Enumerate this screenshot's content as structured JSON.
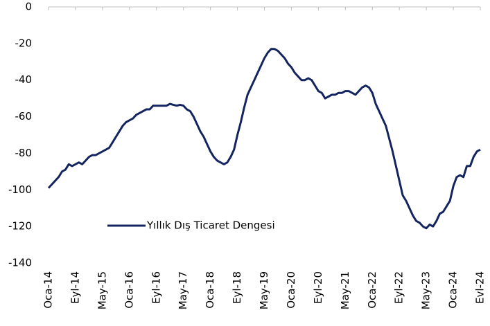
{
  "chart_data": {
    "type": "line",
    "categories": [
      "Oca-14",
      null,
      null,
      null,
      null,
      null,
      null,
      null,
      "Eyl-14",
      null,
      null,
      null,
      null,
      null,
      null,
      null,
      "May-15",
      null,
      null,
      null,
      null,
      null,
      null,
      null,
      "Oca-16",
      null,
      null,
      null,
      null,
      null,
      null,
      null,
      "Eyl-16",
      null,
      null,
      null,
      null,
      null,
      null,
      null,
      "May-17",
      null,
      null,
      null,
      null,
      null,
      null,
      null,
      "Oca-18",
      null,
      null,
      null,
      null,
      null,
      null,
      null,
      "Eyl-18",
      null,
      null,
      null,
      null,
      null,
      null,
      null,
      "May-19",
      null,
      null,
      null,
      null,
      null,
      null,
      null,
      "Oca-20",
      null,
      null,
      null,
      null,
      null,
      null,
      null,
      "Eyl-20",
      null,
      null,
      null,
      null,
      null,
      null,
      null,
      "May-21",
      null,
      null,
      null,
      null,
      null,
      null,
      null,
      "Oca-22",
      null,
      null,
      null,
      null,
      null,
      null,
      null,
      "Eyl-22",
      null,
      null,
      null,
      null,
      null,
      null,
      null,
      "May-23",
      null,
      null,
      null,
      null,
      null,
      null,
      null,
      "Oca-24",
      null,
      null,
      null,
      null,
      null,
      null,
      null,
      "Evl-24"
    ],
    "series": [
      {
        "name": "Yıllık Dış Ticaret Dengesi",
        "color": "#13245e",
        "values": [
          -99,
          -97,
          -95,
          -93,
          -90,
          -89,
          -86,
          -87,
          -86,
          -85,
          -86,
          -84,
          -82,
          -81,
          -81,
          -80,
          -79,
          -78,
          -77,
          -74,
          -71,
          -68,
          -65,
          -63,
          -62,
          -61,
          -59,
          -58,
          -57,
          -56,
          -56,
          -54,
          -54,
          -54,
          -54,
          -54,
          -53,
          -53.5,
          -54,
          -53.5,
          -54,
          -56,
          -57,
          -60,
          -64,
          -68,
          -71,
          -75,
          -79,
          -82,
          -84,
          -85,
          -86,
          -85,
          -82,
          -78,
          -70,
          -63,
          -55,
          -48,
          -44,
          -40,
          -36,
          -32,
          -28,
          -25,
          -23,
          -23,
          -24,
          -26,
          -28,
          -31,
          -33,
          -36,
          -38,
          -40,
          -40,
          -39,
          -40,
          -43,
          -46,
          -47,
          -50,
          -49,
          -48,
          -48,
          -47,
          -47,
          -46,
          -46,
          -47,
          -48,
          -46,
          -44,
          -43,
          -44,
          -47,
          -53,
          -57,
          -61,
          -65,
          -72,
          -79,
          -87,
          -95,
          -103,
          -106,
          -110,
          -114,
          -117,
          -118,
          -120,
          -121,
          -119,
          -120,
          -117,
          -113,
          -112,
          -109,
          -106,
          -98,
          -93,
          -92,
          -93,
          -87,
          -87,
          -82,
          -79,
          -78
        ]
      }
    ],
    "ylim": [
      -140,
      0
    ],
    "yticks": [
      0,
      -20,
      -40,
      -60,
      -80,
      -100,
      -120,
      -140
    ],
    "grid": false,
    "legend": "bottom-left"
  }
}
